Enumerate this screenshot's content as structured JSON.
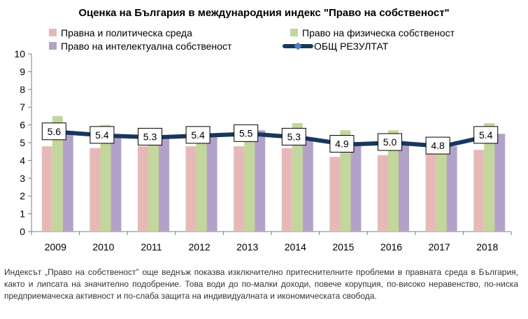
{
  "chart_data": {
    "type": "bar",
    "title": "Оценка на България в международния индекс \"Право на собственост\"",
    "categories": [
      "2009",
      "2010",
      "2011",
      "2012",
      "2013",
      "2014",
      "2015",
      "2016",
      "2017",
      "2018"
    ],
    "series": [
      {
        "name": "Правна и политическа среда",
        "kind": "bar",
        "color": "#e6b9b8",
        "values": [
          4.8,
          4.7,
          4.8,
          4.8,
          4.8,
          4.7,
          4.2,
          4.3,
          4.4,
          4.6
        ]
      },
      {
        "name": "Право на физическа собственост",
        "kind": "bar",
        "color": "#c3d69b",
        "values": [
          6.5,
          6.0,
          5.4,
          5.6,
          5.6,
          6.1,
          5.7,
          5.7,
          5.2,
          6.1
        ]
      },
      {
        "name": "Право на интелектуална собственост",
        "kind": "bar",
        "color": "#b3a2c7",
        "values": [
          5.5,
          5.3,
          5.3,
          5.4,
          5.7,
          5.1,
          5.0,
          4.9,
          4.8,
          5.5
        ]
      },
      {
        "name": "ОБЩ РЕЗУЛТАТ",
        "kind": "line",
        "color": "#17375e",
        "marker_color": "#4f81bd",
        "values": [
          5.6,
          5.4,
          5.3,
          5.4,
          5.5,
          5.3,
          4.9,
          5.0,
          4.8,
          5.4
        ],
        "labels": [
          "5.6",
          "5.4",
          "5.3",
          "5.4",
          "5.5",
          "5.3",
          "4.9",
          "5.0",
          "4.8",
          "5.4"
        ]
      }
    ],
    "ylim": [
      0,
      10
    ],
    "yticks": [
      "0",
      "1",
      "2",
      "3",
      "4",
      "5",
      "6",
      "7",
      "8",
      "9",
      "10"
    ],
    "grid": false,
    "legend": "top"
  },
  "caption": "Индексът „Право на собственост” още веднъж показва изключително притеснителните проблеми в правната среда в България, както и липсата на значително подобрение. Това води до по-малки доходи, повече корупция, по-високо неравенство, по-ниска предприемаческа активност и по-слаба защита на индивидуалната и икономическата свобода."
}
